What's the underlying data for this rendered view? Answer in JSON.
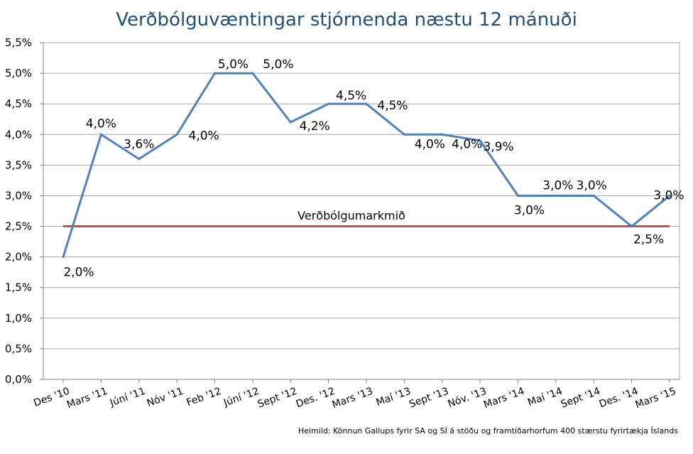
{
  "chart_data": {
    "type": "line",
    "title": "Verðbólguvæntingar stjórnenda næstu 12 mánuði",
    "categories": [
      "Des '10",
      "Mars '11",
      "Júní '11",
      "Nóv '11",
      "Feb '12",
      "Júní '12",
      "Sept '12",
      "Des. '12",
      "Mars '13",
      "Maí '13",
      "Sept '13",
      "Nóv. '13",
      "Mars '14",
      "Maí '14",
      "Sept '14",
      "Des. '14",
      "Mars '15"
    ],
    "series": [
      {
        "name": "Verðbólguvæntingar",
        "color": "#4f81bd",
        "values": [
          2.0,
          4.0,
          3.6,
          4.0,
          5.0,
          5.0,
          4.2,
          4.5,
          4.5,
          4.0,
          4.0,
          3.9,
          3.0,
          3.0,
          3.0,
          2.5,
          3.0
        ],
        "labels": [
          "2,0%",
          "4,0%",
          "3,6%",
          "4,0%",
          "5,0%",
          "5,0%",
          "4,2%",
          "4,5%",
          "4,5%",
          "4,0%",
          "4,0%",
          "3,9%",
          "3,0%",
          "3,0%",
          "3,0%",
          "2,5%",
          "3,0%"
        ]
      },
      {
        "name": "Verðbólgumarkmið",
        "color": "#c0504d",
        "values": [
          2.5,
          2.5,
          2.5,
          2.5,
          2.5,
          2.5,
          2.5,
          2.5,
          2.5,
          2.5,
          2.5,
          2.5,
          2.5,
          2.5,
          2.5,
          2.5,
          2.5
        ]
      }
    ],
    "reference_label": "Verðbólgumarkmið",
    "ylim": [
      0,
      5.5
    ],
    "yticks": [
      0,
      0.5,
      1.0,
      1.5,
      2.0,
      2.5,
      3.0,
      3.5,
      4.0,
      4.5,
      5.0,
      5.5
    ],
    "ytick_labels": [
      "0,0%",
      "0,5%",
      "1,0%",
      "1,5%",
      "2,0%",
      "2,5%",
      "3,0%",
      "3,5%",
      "4,0%",
      "4,5%",
      "5,0%",
      "5,5%"
    ],
    "grid": true,
    "xlabel": "",
    "ylabel": "",
    "source": "Heimild: Könnun Gallups fyrir SA og SÍ á stöðu og framtíðarhorfum 400 stærstu fyrirtækja Íslands"
  }
}
